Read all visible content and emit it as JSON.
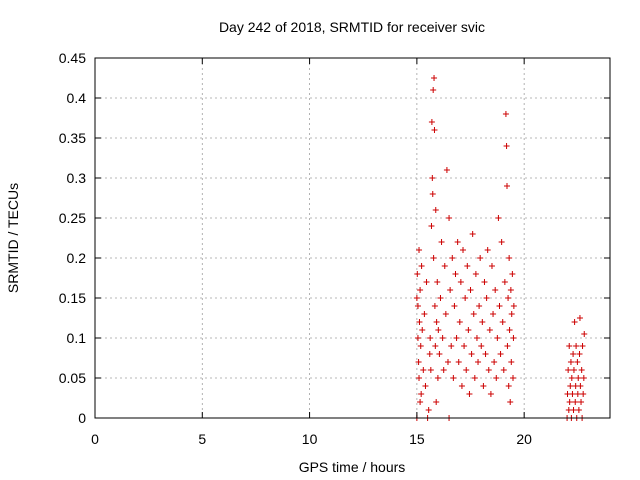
{
  "chart_data": {
    "type": "scatter",
    "title": "Day 242 of 2018, SRMTID for receiver svic",
    "xlabel": "GPS time / hours",
    "ylabel": "SRMTID / TECUs",
    "xlim": [
      0,
      24
    ],
    "ylim": [
      0,
      0.45
    ],
    "xticks": [
      "0",
      "5",
      "10",
      "15",
      "20"
    ],
    "xtick_values": [
      0,
      5,
      10,
      15,
      20
    ],
    "yticks": [
      "0",
      "0.05",
      "0.1",
      "0.15",
      "0.2",
      "0.25",
      "0.3",
      "0.35",
      "0.4",
      "0.45"
    ],
    "ytick_values": [
      0,
      0.05,
      0.1,
      0.15,
      0.2,
      0.25,
      0.3,
      0.35,
      0.4,
      0.45
    ],
    "grid": true,
    "marker": "plus",
    "marker_color": "#cc0000",
    "series": [
      {
        "points": [
          [
            15.0,
            0.0
          ],
          [
            15.0,
            0.15
          ],
          [
            15.02,
            0.18
          ],
          [
            15.05,
            0.1
          ],
          [
            15.05,
            0.14
          ],
          [
            15.08,
            0.07
          ],
          [
            15.1,
            0.05
          ],
          [
            15.1,
            0.21
          ],
          [
            15.12,
            0.12
          ],
          [
            15.15,
            0.02
          ],
          [
            15.15,
            0.16
          ],
          [
            15.18,
            0.09
          ],
          [
            15.2,
            0.03
          ],
          [
            15.22,
            0.19
          ],
          [
            15.25,
            0.11
          ],
          [
            15.3,
            0.06
          ],
          [
            15.35,
            0.13
          ],
          [
            15.4,
            0.04
          ],
          [
            15.45,
            0.17
          ],
          [
            15.5,
            0.0
          ],
          [
            15.55,
            0.01
          ],
          [
            15.6,
            0.08
          ],
          [
            15.62,
            0.1
          ],
          [
            15.65,
            0.06
          ],
          [
            15.68,
            0.24
          ],
          [
            15.7,
            0.37
          ],
          [
            15.72,
            0.3
          ],
          [
            15.74,
            0.28
          ],
          [
            15.76,
            0.41
          ],
          [
            15.78,
            0.2
          ],
          [
            15.8,
            0.425
          ],
          [
            15.82,
            0.36
          ],
          [
            15.84,
            0.14
          ],
          [
            15.86,
            0.09
          ],
          [
            15.88,
            0.26
          ],
          [
            15.9,
            0.02
          ],
          [
            15.92,
            0.12
          ],
          [
            15.95,
            0.17
          ],
          [
            15.98,
            0.05
          ],
          [
            16.0,
            0.11
          ],
          [
            16.05,
            0.08
          ],
          [
            16.1,
            0.15
          ],
          [
            16.15,
            0.22
          ],
          [
            16.2,
            0.1
          ],
          [
            16.25,
            0.06
          ],
          [
            16.3,
            0.19
          ],
          [
            16.35,
            0.13
          ],
          [
            16.4,
            0.31
          ],
          [
            16.45,
            0.07
          ],
          [
            16.5,
            0.0
          ],
          [
            16.5,
            0.25
          ],
          [
            16.55,
            0.16
          ],
          [
            16.6,
            0.09
          ],
          [
            16.65,
            0.2
          ],
          [
            16.7,
            0.05
          ],
          [
            16.75,
            0.14
          ],
          [
            16.8,
            0.18
          ],
          [
            16.85,
            0.1
          ],
          [
            16.9,
            0.22
          ],
          [
            16.95,
            0.07
          ],
          [
            17.0,
            0.12
          ],
          [
            17.05,
            0.17
          ],
          [
            17.1,
            0.04
          ],
          [
            17.15,
            0.21
          ],
          [
            17.2,
            0.09
          ],
          [
            17.25,
            0.15
          ],
          [
            17.3,
            0.06
          ],
          [
            17.35,
            0.19
          ],
          [
            17.4,
            0.11
          ],
          [
            17.45,
            0.03
          ],
          [
            17.5,
            0.16
          ],
          [
            17.55,
            0.08
          ],
          [
            17.6,
            0.23
          ],
          [
            17.65,
            0.13
          ],
          [
            17.7,
            0.05
          ],
          [
            17.75,
            0.18
          ],
          [
            17.8,
            0.1
          ],
          [
            17.85,
            0.07
          ],
          [
            17.9,
            0.14
          ],
          [
            17.95,
            0.2
          ],
          [
            18.0,
            0.09
          ],
          [
            18.05,
            0.12
          ],
          [
            18.1,
            0.04
          ],
          [
            18.15,
            0.17
          ],
          [
            18.2,
            0.08
          ],
          [
            18.25,
            0.15
          ],
          [
            18.3,
            0.21
          ],
          [
            18.35,
            0.06
          ],
          [
            18.4,
            0.11
          ],
          [
            18.45,
            0.03
          ],
          [
            18.5,
            0.19
          ],
          [
            18.55,
            0.13
          ],
          [
            18.6,
            0.07
          ],
          [
            18.65,
            0.16
          ],
          [
            18.7,
            0.05
          ],
          [
            18.75,
            0.1
          ],
          [
            18.8,
            0.25
          ],
          [
            18.85,
            0.14
          ],
          [
            18.9,
            0.08
          ],
          [
            18.95,
            0.22
          ],
          [
            19.0,
            0.12
          ],
          [
            19.05,
            0.06
          ],
          [
            19.1,
            0.17
          ],
          [
            19.15,
            0.38
          ],
          [
            19.18,
            0.34
          ],
          [
            19.2,
            0.29
          ],
          [
            19.22,
            0.09
          ],
          [
            19.25,
            0.15
          ],
          [
            19.28,
            0.04
          ],
          [
            19.3,
            0.2
          ],
          [
            19.32,
            0.11
          ],
          [
            19.35,
            0.02
          ],
          [
            19.38,
            0.16
          ],
          [
            19.4,
            0.07
          ],
          [
            19.42,
            0.13
          ],
          [
            19.45,
            0.18
          ],
          [
            19.48,
            0.05
          ],
          [
            19.5,
            0.1
          ],
          [
            19.52,
            0.14
          ],
          [
            22.0,
            0.0
          ],
          [
            22.02,
            0.03
          ],
          [
            22.05,
            0.06
          ],
          [
            22.08,
            0.01
          ],
          [
            22.1,
            0.09
          ],
          [
            22.12,
            0.02
          ],
          [
            22.15,
            0.04
          ],
          [
            22.18,
            0.07
          ],
          [
            22.2,
            0.0
          ],
          [
            22.22,
            0.05
          ],
          [
            22.25,
            0.03
          ],
          [
            22.28,
            0.08
          ],
          [
            22.3,
            0.01
          ],
          [
            22.32,
            0.06
          ],
          [
            22.35,
            0.12
          ],
          [
            22.38,
            0.02
          ],
          [
            22.4,
            0.04
          ],
          [
            22.42,
            0.09
          ],
          [
            22.45,
            0.0
          ],
          [
            22.48,
            0.07
          ],
          [
            22.5,
            0.03
          ],
          [
            22.52,
            0.05
          ],
          [
            22.55,
            0.01
          ],
          [
            22.58,
            0.08
          ],
          [
            22.6,
            0.125
          ],
          [
            22.62,
            0.04
          ],
          [
            22.65,
            0.02
          ],
          [
            22.68,
            0.06
          ],
          [
            22.7,
            0.0
          ],
          [
            22.72,
            0.09
          ],
          [
            22.75,
            0.03
          ],
          [
            22.78,
            0.05
          ],
          [
            22.8,
            0.105
          ]
        ]
      }
    ]
  }
}
